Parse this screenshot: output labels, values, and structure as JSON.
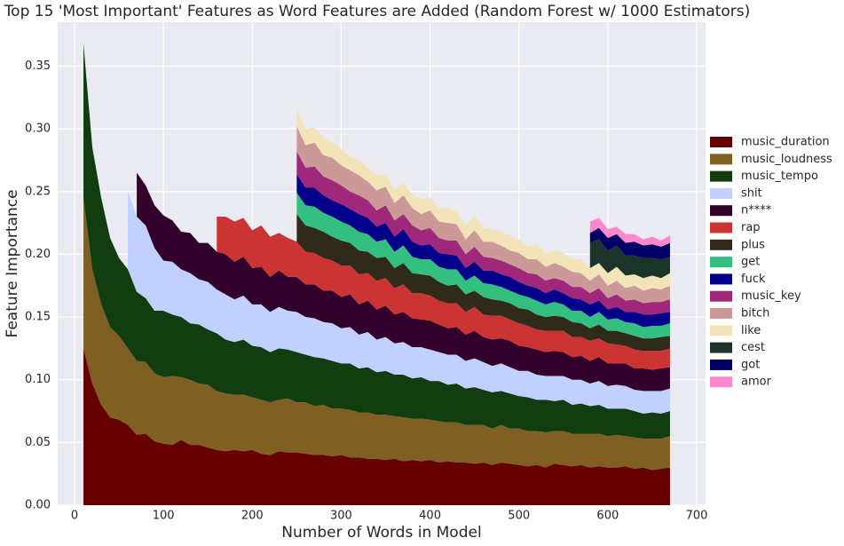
{
  "chart_data": {
    "type": "stacked_area",
    "title": "Top 15 'Most Important' Features as Word Features are Added (Random Forest w/ 1000 Estimators)",
    "x_label": "Number of Words in Model",
    "y_label": "Feature Importance",
    "xlim": [
      -19,
      710
    ],
    "ylim": [
      0,
      0.385
    ],
    "xticks": [
      0,
      100,
      200,
      300,
      400,
      500,
      600,
      700
    ],
    "yticks": [
      {
        "value": 0,
        "label": "0.00"
      },
      {
        "value": 0.05,
        "label": "0.05"
      },
      {
        "value": 0.1,
        "label": "0.10"
      },
      {
        "value": 0.15,
        "label": "0.15"
      },
      {
        "value": 0.2,
        "label": "0.20"
      },
      {
        "value": 0.25,
        "label": "0.25"
      },
      {
        "value": 0.3,
        "label": "0.30"
      },
      {
        "value": 0.35,
        "label": "0.35"
      }
    ],
    "grid": true,
    "legend": "right",
    "x": [
      10,
      20,
      30,
      40,
      50,
      60,
      70,
      80,
      90,
      100,
      110,
      120,
      130,
      140,
      150,
      160,
      170,
      180,
      190,
      200,
      210,
      220,
      230,
      240,
      250,
      260,
      270,
      280,
      290,
      300,
      310,
      320,
      330,
      340,
      350,
      360,
      370,
      380,
      390,
      400,
      410,
      420,
      430,
      440,
      450,
      460,
      470,
      480,
      490,
      500,
      510,
      520,
      530,
      540,
      550,
      560,
      570,
      580,
      590,
      600,
      610,
      620,
      630,
      640,
      650,
      660,
      670
    ],
    "series": [
      {
        "name": "music_duration",
        "color": "#660000",
        "values": [
          0.125,
          0.097,
          0.08,
          0.07,
          0.068,
          0.064,
          0.056,
          0.057,
          0.051,
          0.049,
          0.048,
          0.052,
          0.048,
          0.048,
          0.046,
          0.044,
          0.043,
          0.044,
          0.043,
          0.044,
          0.041,
          0.04,
          0.043,
          0.042,
          0.042,
          0.041,
          0.04,
          0.04,
          0.039,
          0.04,
          0.038,
          0.038,
          0.037,
          0.037,
          0.036,
          0.037,
          0.035,
          0.036,
          0.035,
          0.036,
          0.034,
          0.035,
          0.034,
          0.034,
          0.033,
          0.034,
          0.032,
          0.034,
          0.033,
          0.032,
          0.031,
          0.032,
          0.03,
          0.033,
          0.032,
          0.031,
          0.032,
          0.03,
          0.031,
          0.03,
          0.03,
          0.031,
          0.029,
          0.03,
          0.028,
          0.029,
          0.03
        ]
      },
      {
        "name": "music_loudness",
        "color": "#7f5f22",
        "values": [
          0.12,
          0.091,
          0.08,
          0.072,
          0.067,
          0.061,
          0.059,
          0.057,
          0.054,
          0.053,
          0.055,
          0.05,
          0.052,
          0.049,
          0.05,
          0.047,
          0.046,
          0.044,
          0.045,
          0.042,
          0.043,
          0.042,
          0.041,
          0.043,
          0.04,
          0.041,
          0.039,
          0.04,
          0.038,
          0.037,
          0.038,
          0.036,
          0.037,
          0.035,
          0.036,
          0.034,
          0.035,
          0.033,
          0.034,
          0.032,
          0.033,
          0.031,
          0.032,
          0.03,
          0.031,
          0.03,
          0.029,
          0.03,
          0.028,
          0.029,
          0.028,
          0.027,
          0.028,
          0.026,
          0.027,
          0.026,
          0.025,
          0.027,
          0.026,
          0.025,
          0.026,
          0.024,
          0.025,
          0.023,
          0.025,
          0.024,
          0.025
        ]
      },
      {
        "name": "music_tempo",
        "color": "#113d11",
        "values": [
          0.123,
          0.097,
          0.085,
          0.071,
          0.062,
          0.063,
          0.055,
          0.051,
          0.05,
          0.053,
          0.049,
          0.048,
          0.045,
          0.047,
          0.044,
          0.046,
          0.043,
          0.042,
          0.044,
          0.041,
          0.042,
          0.04,
          0.041,
          0.039,
          0.04,
          0.038,
          0.039,
          0.037,
          0.038,
          0.036,
          0.037,
          0.035,
          0.036,
          0.034,
          0.035,
          0.033,
          0.034,
          0.032,
          0.033,
          0.031,
          0.032,
          0.03,
          0.031,
          0.029,
          0.03,
          0.028,
          0.029,
          0.027,
          0.028,
          0.026,
          0.027,
          0.025,
          0.026,
          0.024,
          0.025,
          0.023,
          0.024,
          0.022,
          0.023,
          0.022,
          0.021,
          0.022,
          0.021,
          0.02,
          0.021,
          0.02,
          0.02
        ]
      },
      {
        "name": "shit",
        "color": "#c2d0ff",
        "values": [
          null,
          null,
          null,
          null,
          null,
          0.062,
          0.06,
          0.058,
          0.05,
          0.04,
          0.042,
          0.038,
          0.04,
          0.036,
          0.038,
          0.035,
          0.036,
          0.034,
          0.035,
          0.033,
          0.034,
          0.032,
          0.033,
          0.031,
          0.032,
          0.03,
          0.031,
          0.029,
          0.03,
          0.028,
          0.029,
          0.027,
          0.028,
          0.026,
          0.027,
          0.025,
          0.026,
          0.025,
          0.024,
          0.025,
          0.023,
          0.024,
          0.023,
          0.022,
          0.023,
          0.022,
          0.021,
          0.022,
          0.021,
          0.02,
          0.021,
          0.02,
          0.019,
          0.02,
          0.019,
          0.02,
          0.019,
          0.018,
          0.019,
          0.018,
          0.019,
          0.018,
          0.017,
          0.018,
          0.017,
          0.018,
          0.018
        ]
      },
      {
        "name": "n****",
        "color": "#33002b",
        "values": [
          null,
          null,
          null,
          null,
          null,
          null,
          0.035,
          0.032,
          0.034,
          0.036,
          0.033,
          0.03,
          0.032,
          0.029,
          0.031,
          0.03,
          0.032,
          0.03,
          0.031,
          0.029,
          0.03,
          0.028,
          0.029,
          0.027,
          0.028,
          0.026,
          0.027,
          0.025,
          0.026,
          0.025,
          0.026,
          0.024,
          0.025,
          0.024,
          0.025,
          0.023,
          0.024,
          0.023,
          0.022,
          0.023,
          0.022,
          0.021,
          0.022,
          0.021,
          0.022,
          0.02,
          0.021,
          0.02,
          0.021,
          0.02,
          0.019,
          0.02,
          0.019,
          0.02,
          0.019,
          0.018,
          0.019,
          0.018,
          0.019,
          0.018,
          0.017,
          0.018,
          0.017,
          0.018,
          0.017,
          0.018,
          0.017
        ]
      },
      {
        "name": "rap",
        "color": "#cc3333",
        "values": [
          null,
          null,
          null,
          null,
          null,
          null,
          null,
          null,
          null,
          null,
          null,
          null,
          null,
          null,
          null,
          0.028,
          0.03,
          0.032,
          0.031,
          0.03,
          0.033,
          0.032,
          0.03,
          0.031,
          0.028,
          0.026,
          0.025,
          0.026,
          0.024,
          0.025,
          0.023,
          0.024,
          0.022,
          0.023,
          0.022,
          0.021,
          0.022,
          0.02,
          0.021,
          0.02,
          0.019,
          0.02,
          0.019,
          0.018,
          0.019,
          0.018,
          0.019,
          0.018,
          0.017,
          0.018,
          0.017,
          0.016,
          0.017,
          0.016,
          0.017,
          0.016,
          0.015,
          0.016,
          0.015,
          0.016,
          0.015,
          0.014,
          0.015,
          0.014,
          0.015,
          0.014,
          0.015
        ]
      },
      {
        "name": "plus",
        "color": "#302a1a",
        "values": [
          null,
          null,
          null,
          null,
          null,
          null,
          null,
          null,
          null,
          null,
          null,
          null,
          null,
          null,
          null,
          null,
          null,
          null,
          null,
          null,
          null,
          null,
          null,
          null,
          0.022,
          0.021,
          0.02,
          0.021,
          0.019,
          0.02,
          0.018,
          0.019,
          0.017,
          0.018,
          0.017,
          0.016,
          0.017,
          0.016,
          0.015,
          0.016,
          0.015,
          0.014,
          0.015,
          0.014,
          0.013,
          0.014,
          0.013,
          0.012,
          0.013,
          0.012,
          0.013,
          0.012,
          0.011,
          0.012,
          0.011,
          0.012,
          0.011,
          0.01,
          0.011,
          0.01,
          0.011,
          0.01,
          0.011,
          0.01,
          0.01,
          0.011,
          0.01
        ]
      },
      {
        "name": "get",
        "color": "#33bf80",
        "values": [
          null,
          null,
          null,
          null,
          null,
          null,
          null,
          null,
          null,
          null,
          null,
          null,
          null,
          null,
          null,
          null,
          null,
          null,
          null,
          null,
          null,
          null,
          null,
          null,
          0.017,
          0.016,
          0.017,
          0.015,
          0.016,
          0.015,
          0.014,
          0.015,
          0.014,
          0.013,
          0.014,
          0.013,
          0.014,
          0.013,
          0.012,
          0.013,
          0.012,
          0.013,
          0.012,
          0.011,
          0.012,
          0.011,
          0.012,
          0.011,
          0.01,
          0.011,
          0.01,
          0.011,
          0.01,
          0.011,
          0.01,
          0.009,
          0.01,
          0.009,
          0.01,
          0.009,
          0.01,
          0.009,
          0.01,
          0.009,
          0.01,
          0.009,
          0.01
        ]
      },
      {
        "name": "fuck",
        "color": "#00008b",
        "values": [
          null,
          null,
          null,
          null,
          null,
          null,
          null,
          null,
          null,
          null,
          null,
          null,
          null,
          null,
          null,
          null,
          null,
          null,
          null,
          null,
          null,
          null,
          null,
          null,
          0.015,
          0.014,
          0.015,
          0.014,
          0.013,
          0.014,
          0.013,
          0.014,
          0.013,
          0.012,
          0.013,
          0.012,
          0.013,
          0.012,
          0.011,
          0.012,
          0.011,
          0.012,
          0.011,
          0.01,
          0.011,
          0.01,
          0.011,
          0.01,
          0.011,
          0.01,
          0.009,
          0.01,
          0.009,
          0.01,
          0.009,
          0.01,
          0.009,
          0.01,
          0.009,
          0.008,
          0.009,
          0.008,
          0.009,
          0.01,
          0.009,
          0.01,
          0.009
        ]
      },
      {
        "name": "music_key",
        "color": "#a0287a",
        "values": [
          null,
          null,
          null,
          null,
          null,
          null,
          null,
          null,
          null,
          null,
          null,
          null,
          null,
          null,
          null,
          null,
          null,
          null,
          null,
          null,
          null,
          null,
          null,
          null,
          0.018,
          0.016,
          0.017,
          0.015,
          0.016,
          0.015,
          0.014,
          0.015,
          0.014,
          0.013,
          0.014,
          0.013,
          0.012,
          0.013,
          0.012,
          0.013,
          0.012,
          0.011,
          0.012,
          0.011,
          0.012,
          0.011,
          0.01,
          0.011,
          0.01,
          0.011,
          0.01,
          0.011,
          0.01,
          0.009,
          0.01,
          0.009,
          0.01,
          0.009,
          0.01,
          0.009,
          0.01,
          0.009,
          0.01,
          0.009,
          0.01,
          0.009,
          0.01
        ]
      },
      {
        "name": "bitch",
        "color": "#cc9999",
        "values": [
          null,
          null,
          null,
          null,
          null,
          null,
          null,
          null,
          null,
          null,
          null,
          null,
          null,
          null,
          null,
          null,
          null,
          null,
          null,
          null,
          null,
          null,
          null,
          null,
          0.02,
          0.018,
          0.019,
          0.017,
          0.018,
          0.016,
          0.017,
          0.016,
          0.015,
          0.016,
          0.015,
          0.014,
          0.015,
          0.014,
          0.013,
          0.014,
          0.013,
          0.014,
          0.013,
          0.012,
          0.013,
          0.012,
          0.013,
          0.012,
          0.011,
          0.012,
          0.011,
          0.012,
          0.011,
          0.012,
          0.011,
          0.012,
          0.011,
          0.01,
          0.011,
          0.01,
          0.011,
          0.01,
          0.011,
          0.01,
          0.011,
          0.01,
          0.011
        ]
      },
      {
        "name": "like",
        "color": "#f2e4b8",
        "values": [
          null,
          null,
          null,
          null,
          null,
          null,
          null,
          null,
          null,
          null,
          null,
          null,
          null,
          null,
          null,
          null,
          null,
          null,
          null,
          null,
          null,
          null,
          null,
          null,
          0.014,
          0.013,
          0.012,
          0.014,
          0.012,
          0.013,
          0.011,
          0.012,
          0.011,
          0.012,
          0.01,
          0.011,
          0.01,
          0.011,
          0.012,
          0.01,
          0.011,
          0.012,
          0.01,
          0.011,
          0.012,
          0.011,
          0.01,
          0.011,
          0.012,
          0.011,
          0.01,
          0.012,
          0.011,
          0.01,
          0.011,
          0.01,
          0.011,
          0.01,
          0.009,
          0.01,
          0.011,
          0.01,
          0.009,
          0.01,
          0.01,
          0.009,
          0.01
        ]
      },
      {
        "name": "cest",
        "color": "#1b3328",
        "values": [
          null,
          null,
          null,
          null,
          null,
          null,
          null,
          null,
          null,
          null,
          null,
          null,
          null,
          null,
          null,
          null,
          null,
          null,
          null,
          null,
          null,
          null,
          null,
          null,
          null,
          null,
          null,
          null,
          null,
          null,
          null,
          null,
          null,
          null,
          null,
          null,
          null,
          null,
          null,
          null,
          null,
          null,
          null,
          null,
          null,
          null,
          null,
          null,
          null,
          null,
          null,
          null,
          null,
          null,
          null,
          null,
          null,
          0.02,
          0.019,
          0.018,
          0.017,
          0.016,
          0.015,
          0.016,
          0.014,
          0.015,
          0.013
        ]
      },
      {
        "name": "got",
        "color": "#000066",
        "values": [
          null,
          null,
          null,
          null,
          null,
          null,
          null,
          null,
          null,
          null,
          null,
          null,
          null,
          null,
          null,
          null,
          null,
          null,
          null,
          null,
          null,
          null,
          null,
          null,
          null,
          null,
          null,
          null,
          null,
          null,
          null,
          null,
          null,
          null,
          null,
          null,
          null,
          null,
          null,
          null,
          null,
          null,
          null,
          null,
          null,
          null,
          null,
          null,
          null,
          null,
          null,
          null,
          null,
          null,
          null,
          null,
          null,
          0.008,
          0.009,
          0.01,
          0.009,
          0.01,
          0.011,
          0.01,
          0.011,
          0.01,
          0.011
        ]
      },
      {
        "name": "amor",
        "color": "#ff88cc",
        "values": [
          null,
          null,
          null,
          null,
          null,
          null,
          null,
          null,
          null,
          null,
          null,
          null,
          null,
          null,
          null,
          null,
          null,
          null,
          null,
          null,
          null,
          null,
          null,
          null,
          null,
          null,
          null,
          null,
          null,
          null,
          null,
          null,
          null,
          null,
          null,
          null,
          null,
          null,
          null,
          null,
          null,
          null,
          null,
          null,
          null,
          null,
          null,
          null,
          null,
          null,
          null,
          null,
          null,
          null,
          null,
          null,
          null,
          0.009,
          0.008,
          0.007,
          0.006,
          0.007,
          0.006,
          0.005,
          0.006,
          0.005,
          0.006
        ]
      }
    ]
  }
}
